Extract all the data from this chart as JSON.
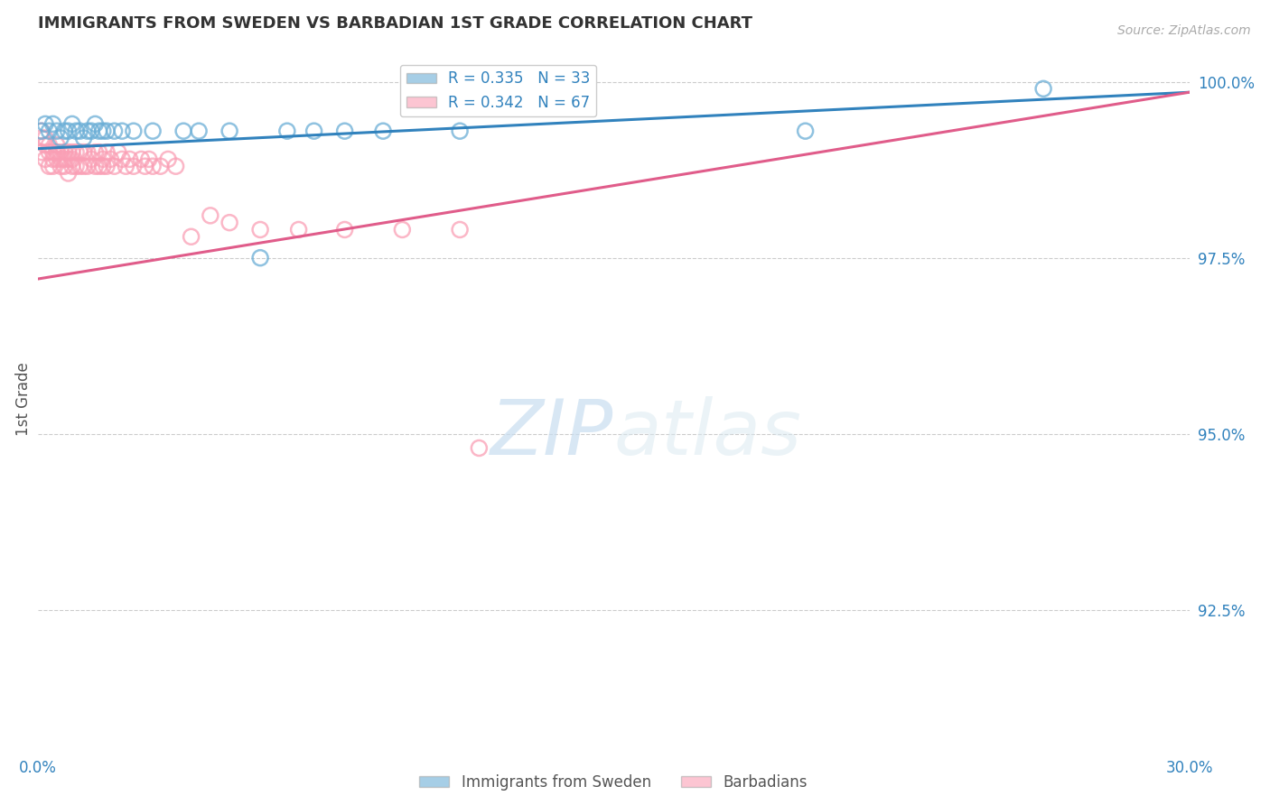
{
  "title": "IMMIGRANTS FROM SWEDEN VS BARBADIAN 1ST GRADE CORRELATION CHART",
  "source": "Source: ZipAtlas.com",
  "ylabel": "1st Grade",
  "legend_blue_label": "Immigrants from Sweden",
  "legend_pink_label": "Barbadians",
  "r_blue": 0.335,
  "n_blue": 33,
  "r_pink": 0.342,
  "n_pink": 67,
  "blue_color": "#6baed6",
  "pink_color": "#fa9fb5",
  "blue_line_color": "#3182bd",
  "pink_line_color": "#e05c8a",
  "xlim": [
    0.0,
    0.3
  ],
  "ylim": [
    0.905,
    1.005
  ],
  "yticks": [
    1.0,
    0.975,
    0.95,
    0.925
  ],
  "ytick_labels": [
    "100.0%",
    "97.5%",
    "95.0%",
    "92.5%"
  ],
  "blue_x": [
    0.001,
    0.002,
    0.003,
    0.004,
    0.005,
    0.006,
    0.007,
    0.008,
    0.009,
    0.01,
    0.011,
    0.012,
    0.013,
    0.014,
    0.015,
    0.016,
    0.017,
    0.018,
    0.02,
    0.022,
    0.025,
    0.03,
    0.038,
    0.042,
    0.05,
    0.058,
    0.065,
    0.072,
    0.08,
    0.09,
    0.11,
    0.2,
    0.262
  ],
  "blue_y": [
    0.993,
    0.994,
    0.993,
    0.994,
    0.993,
    0.992,
    0.993,
    0.993,
    0.994,
    0.993,
    0.993,
    0.992,
    0.993,
    0.993,
    0.994,
    0.993,
    0.993,
    0.993,
    0.993,
    0.993,
    0.993,
    0.993,
    0.993,
    0.993,
    0.993,
    0.975,
    0.993,
    0.993,
    0.993,
    0.993,
    0.993,
    0.993,
    0.999
  ],
  "pink_x": [
    0.001,
    0.001,
    0.001,
    0.002,
    0.002,
    0.002,
    0.003,
    0.003,
    0.003,
    0.004,
    0.004,
    0.004,
    0.005,
    0.005,
    0.005,
    0.006,
    0.006,
    0.006,
    0.007,
    0.007,
    0.007,
    0.008,
    0.008,
    0.008,
    0.009,
    0.009,
    0.009,
    0.01,
    0.01,
    0.011,
    0.011,
    0.012,
    0.012,
    0.013,
    0.013,
    0.014,
    0.015,
    0.015,
    0.016,
    0.016,
    0.017,
    0.017,
    0.018,
    0.018,
    0.019,
    0.02,
    0.021,
    0.022,
    0.023,
    0.024,
    0.025,
    0.027,
    0.028,
    0.029,
    0.03,
    0.032,
    0.034,
    0.036,
    0.04,
    0.045,
    0.05,
    0.058,
    0.068,
    0.08,
    0.095,
    0.11,
    0.115
  ],
  "pink_y": [
    0.993,
    0.992,
    0.99,
    0.992,
    0.991,
    0.989,
    0.991,
    0.99,
    0.988,
    0.99,
    0.989,
    0.988,
    0.991,
    0.99,
    0.989,
    0.99,
    0.989,
    0.988,
    0.99,
    0.989,
    0.988,
    0.99,
    0.989,
    0.987,
    0.99,
    0.989,
    0.988,
    0.99,
    0.988,
    0.99,
    0.988,
    0.99,
    0.988,
    0.99,
    0.988,
    0.989,
    0.99,
    0.988,
    0.99,
    0.988,
    0.989,
    0.988,
    0.99,
    0.988,
    0.989,
    0.988,
    0.99,
    0.989,
    0.988,
    0.989,
    0.988,
    0.989,
    0.988,
    0.989,
    0.988,
    0.988,
    0.989,
    0.988,
    0.978,
    0.981,
    0.98,
    0.979,
    0.979,
    0.979,
    0.979,
    0.979,
    0.948
  ],
  "blue_line_x0": 0.0,
  "blue_line_y0": 0.9905,
  "blue_line_x1": 0.3,
  "blue_line_y1": 0.9985,
  "pink_line_x0": 0.0,
  "pink_line_y0": 0.972,
  "pink_line_x1": 0.3,
  "pink_line_y1": 0.9985
}
